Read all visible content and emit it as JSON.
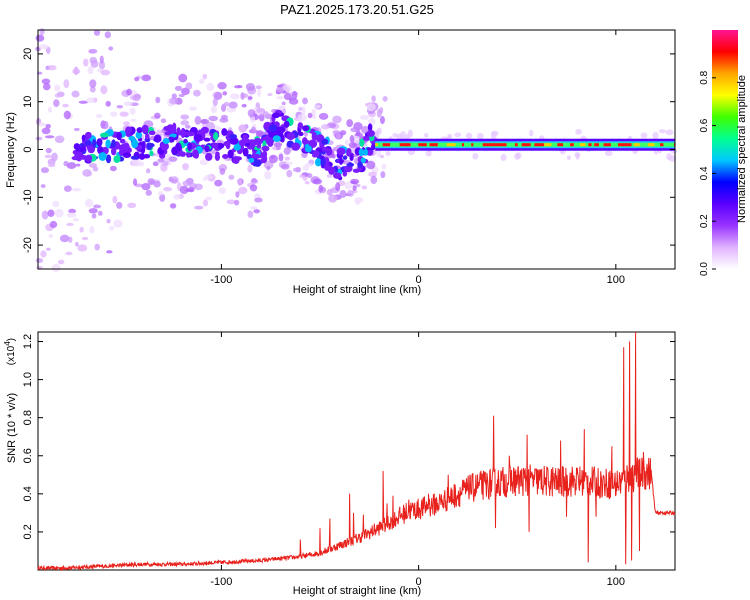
{
  "figure": {
    "title": "PAZ1.2025.173.20.51.G25"
  },
  "chart_data": [
    {
      "type": "heatmap",
      "xlabel": "Height of straight line (km)",
      "ylabel": "Frequency (Hz)",
      "xlim": [
        -193,
        130
      ],
      "ylim": [
        -25,
        25
      ],
      "xticks": [
        -100,
        0,
        100
      ],
      "yticks": [
        -20,
        -10,
        0,
        10,
        20
      ],
      "grid": false,
      "colorbar": {
        "label": "Normalized spectral amplitude",
        "ticks": [
          0.0,
          0.2,
          0.4,
          0.6,
          0.8
        ],
        "range": [
          0,
          1
        ],
        "colormap": [
          "#ffffff",
          "#e0b3ff",
          "#9933ff",
          "#5a00ff",
          "#0000ff",
          "#00c8ff",
          "#00ff90",
          "#40ff00",
          "#ffff00",
          "#ffa500",
          "#ff0000",
          "#ff1493"
        ]
      },
      "ridge": {
        "description_x": [
          -190,
          -150,
          -120,
          -100,
          -80,
          -72,
          -60,
          -50,
          -40,
          -30,
          -25,
          -20,
          -10,
          0,
          20,
          40,
          60,
          80,
          100,
          105,
          110,
          130
        ],
        "frequency_hz": [
          0,
          1,
          2,
          1,
          0,
          5,
          3,
          0,
          -3,
          -2,
          2,
          2,
          1,
          0,
          1,
          0.5,
          0.5,
          0.5,
          1,
          3,
          0,
          1
        ]
      },
      "clean_band": {
        "x_start": -22,
        "x_end": 130,
        "frequency_hz": 1
      }
    },
    {
      "type": "line",
      "xlabel": "Height of straight line (km)",
      "ylabel": "SNR (10 * v/v)",
      "scale_note": "(x10",
      "scale_exponent": "4",
      "xlim": [
        -193,
        130
      ],
      "ylim": [
        0,
        1.25
      ],
      "xticks": [
        -100,
        0,
        100
      ],
      "yticks": [
        0.2,
        0.4,
        0.6,
        0.8,
        1.0,
        1.2
      ],
      "grid": false,
      "series": [
        {
          "color": "#e8211c",
          "x": [
            -193,
            -180,
            -160,
            -140,
            -120,
            -100,
            -80,
            -60,
            -50,
            -40,
            -30,
            -20,
            -15,
            -10,
            -5,
            0,
            10,
            20,
            30,
            40,
            50,
            60,
            70,
            80,
            90,
            100,
            105,
            110,
            115,
            118,
            120,
            125,
            130
          ],
          "y": [
            0.01,
            0.01,
            0.02,
            0.03,
            0.03,
            0.04,
            0.05,
            0.07,
            0.09,
            0.13,
            0.17,
            0.22,
            0.25,
            0.28,
            0.31,
            0.32,
            0.35,
            0.4,
            0.44,
            0.46,
            0.47,
            0.47,
            0.46,
            0.47,
            0.46,
            0.45,
            0.48,
            0.5,
            0.51,
            0.51,
            0.3,
            0.3,
            0.3
          ]
        }
      ],
      "spikes": [
        {
          "x": -60,
          "y": 0.16
        },
        {
          "x": -50,
          "y": 0.22
        },
        {
          "x": -45,
          "y": 0.27
        },
        {
          "x": -35,
          "y": 0.4
        },
        {
          "x": -33,
          "y": 0.3
        },
        {
          "x": -28,
          "y": 0.29
        },
        {
          "x": -18,
          "y": 0.52
        },
        {
          "x": -16,
          "y": 0.35
        },
        {
          "x": -13,
          "y": 0.39
        },
        {
          "x": -5,
          "y": 0.37
        },
        {
          "x": 5,
          "y": 0.4
        },
        {
          "x": 15,
          "y": 0.5
        },
        {
          "x": 26,
          "y": 0.5
        },
        {
          "x": 38,
          "y": 0.81
        },
        {
          "x": 39,
          "y": 0.22
        },
        {
          "x": 46,
          "y": 0.6
        },
        {
          "x": 55,
          "y": 0.71
        },
        {
          "x": 56,
          "y": 0.2
        },
        {
          "x": 68,
          "y": 0.54
        },
        {
          "x": 72,
          "y": 0.68
        },
        {
          "x": 75,
          "y": 0.28
        },
        {
          "x": 84,
          "y": 0.74
        },
        {
          "x": 86,
          "y": 0.04
        },
        {
          "x": 90,
          "y": 0.28
        },
        {
          "x": 98,
          "y": 0.65
        },
        {
          "x": 104,
          "y": 1.17
        },
        {
          "x": 105,
          "y": 0.03
        },
        {
          "x": 107,
          "y": 1.2
        },
        {
          "x": 108,
          "y": 0.05
        },
        {
          "x": 110,
          "y": 1.25
        },
        {
          "x": 112,
          "y": 0.1
        },
        {
          "x": 114,
          "y": 0.62
        }
      ]
    }
  ]
}
